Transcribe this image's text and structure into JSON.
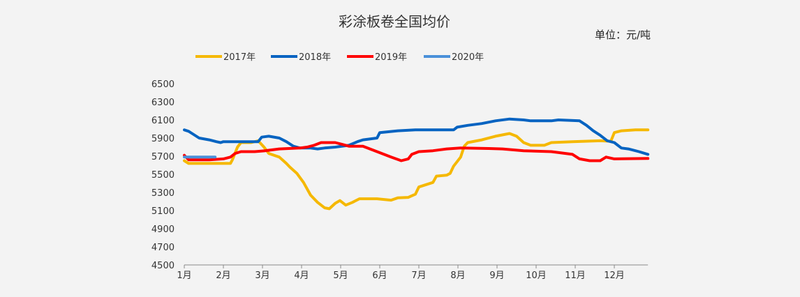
{
  "chart_data": {
    "type": "line",
    "title": "彩涂板卷全国均价",
    "unit_label": "单位：元/吨",
    "xlabel": "",
    "ylabel": "",
    "ylim": [
      4500,
      6500
    ],
    "yticks": [
      4500,
      4700,
      4900,
      5100,
      5300,
      5500,
      5700,
      5900,
      6100,
      6300,
      6500
    ],
    "ytick_labels": [
      "4500",
      "4700",
      "4900",
      "5100",
      "5300",
      "5500",
      "5700",
      "5900",
      "6100",
      "6300",
      "6500"
    ],
    "xlim": [
      0,
      11.86
    ],
    "xtick_labels": [
      "1月",
      "2月",
      "3月",
      "4月",
      "5月",
      "6月",
      "7月",
      "8月",
      "9月",
      "10月",
      "11月",
      "12月"
    ],
    "legend_position": "top-left",
    "grid": false,
    "series": [
      {
        "name": "2017年",
        "color": "#f5b800",
        "points": [
          [
            0,
            5650
          ],
          [
            0.11,
            5620
          ],
          [
            1.18,
            5620
          ],
          [
            1.23,
            5660
          ],
          [
            1.36,
            5800
          ],
          [
            1.45,
            5850
          ],
          [
            1.71,
            5850
          ],
          [
            1.89,
            5870
          ],
          [
            2.04,
            5800
          ],
          [
            2.16,
            5730
          ],
          [
            2.43,
            5690
          ],
          [
            2.61,
            5620
          ],
          [
            2.7,
            5580
          ],
          [
            2.88,
            5510
          ],
          [
            3.05,
            5410
          ],
          [
            3.23,
            5270
          ],
          [
            3.41,
            5190
          ],
          [
            3.59,
            5130
          ],
          [
            3.71,
            5120
          ],
          [
            3.86,
            5180
          ],
          [
            3.98,
            5210
          ],
          [
            4.13,
            5160
          ],
          [
            4.3,
            5190
          ],
          [
            4.48,
            5230
          ],
          [
            4.93,
            5230
          ],
          [
            5.29,
            5215
          ],
          [
            5.46,
            5240
          ],
          [
            5.73,
            5245
          ],
          [
            5.91,
            5280
          ],
          [
            6.0,
            5360
          ],
          [
            6.36,
            5410
          ],
          [
            6.45,
            5480
          ],
          [
            6.71,
            5490
          ],
          [
            6.8,
            5510
          ],
          [
            6.89,
            5590
          ],
          [
            7.07,
            5690
          ],
          [
            7.16,
            5810
          ],
          [
            7.25,
            5850
          ],
          [
            7.61,
            5880
          ],
          [
            7.96,
            5920
          ],
          [
            8.32,
            5950
          ],
          [
            8.5,
            5920
          ],
          [
            8.68,
            5850
          ],
          [
            8.86,
            5820
          ],
          [
            9.21,
            5820
          ],
          [
            9.39,
            5850
          ],
          [
            9.93,
            5860
          ],
          [
            10.64,
            5870
          ],
          [
            10.91,
            5865
          ],
          [
            11.0,
            5960
          ],
          [
            11.18,
            5980
          ],
          [
            11.54,
            5990
          ],
          [
            11.86,
            5990
          ]
        ]
      },
      {
        "name": "2018年",
        "color": "#0563c1",
        "points": [
          [
            0,
            5990
          ],
          [
            0.11,
            5975
          ],
          [
            0.2,
            5950
          ],
          [
            0.38,
            5900
          ],
          [
            0.64,
            5880
          ],
          [
            0.82,
            5860
          ],
          [
            0.93,
            5850
          ],
          [
            1.0,
            5860
          ],
          [
            1.89,
            5860
          ],
          [
            1.98,
            5910
          ],
          [
            2.16,
            5920
          ],
          [
            2.43,
            5900
          ],
          [
            2.61,
            5860
          ],
          [
            2.79,
            5810
          ],
          [
            2.96,
            5790
          ],
          [
            3.23,
            5790
          ],
          [
            3.41,
            5780
          ],
          [
            3.59,
            5790
          ],
          [
            3.86,
            5800
          ],
          [
            4.21,
            5820
          ],
          [
            4.43,
            5860
          ],
          [
            4.57,
            5880
          ],
          [
            4.93,
            5900
          ],
          [
            5.0,
            5960
          ],
          [
            5.46,
            5980
          ],
          [
            5.91,
            5990
          ],
          [
            6.89,
            5990
          ],
          [
            6.98,
            6020
          ],
          [
            7.25,
            6040
          ],
          [
            7.61,
            6060
          ],
          [
            7.96,
            6090
          ],
          [
            8.32,
            6110
          ],
          [
            8.68,
            6100
          ],
          [
            8.86,
            6090
          ],
          [
            9.39,
            6090
          ],
          [
            9.57,
            6100
          ],
          [
            10.11,
            6090
          ],
          [
            10.29,
            6040
          ],
          [
            10.46,
            5980
          ],
          [
            10.64,
            5930
          ],
          [
            10.82,
            5870
          ],
          [
            11.0,
            5850
          ],
          [
            11.18,
            5790
          ],
          [
            11.36,
            5780
          ],
          [
            11.63,
            5750
          ],
          [
            11.86,
            5720
          ]
        ]
      },
      {
        "name": "2019年",
        "color": "#ff0000",
        "points": [
          [
            0,
            5710
          ],
          [
            0.11,
            5660
          ],
          [
            0.64,
            5660
          ],
          [
            1.0,
            5670
          ],
          [
            1.18,
            5690
          ],
          [
            1.3,
            5730
          ],
          [
            1.45,
            5750
          ],
          [
            1.8,
            5750
          ],
          [
            2.07,
            5760
          ],
          [
            2.43,
            5780
          ],
          [
            2.96,
            5790
          ],
          [
            3.14,
            5800
          ],
          [
            3.32,
            5820
          ],
          [
            3.5,
            5850
          ],
          [
            3.86,
            5850
          ],
          [
            4.04,
            5830
          ],
          [
            4.21,
            5810
          ],
          [
            4.57,
            5810
          ],
          [
            4.75,
            5780
          ],
          [
            4.93,
            5750
          ],
          [
            5.29,
            5690
          ],
          [
            5.55,
            5650
          ],
          [
            5.73,
            5670
          ],
          [
            5.82,
            5720
          ],
          [
            6.0,
            5750
          ],
          [
            6.36,
            5760
          ],
          [
            6.71,
            5780
          ],
          [
            7.07,
            5790
          ],
          [
            7.79,
            5785
          ],
          [
            8.14,
            5780
          ],
          [
            8.68,
            5760
          ],
          [
            9.39,
            5750
          ],
          [
            9.93,
            5720
          ],
          [
            10.11,
            5670
          ],
          [
            10.37,
            5650
          ],
          [
            10.64,
            5650
          ],
          [
            10.79,
            5690
          ],
          [
            11.0,
            5670
          ],
          [
            11.86,
            5675
          ]
        ]
      },
      {
        "name": "2020年",
        "color": "#4a90d9",
        "points": [
          [
            0,
            5690
          ],
          [
            0.79,
            5690
          ]
        ]
      }
    ]
  }
}
